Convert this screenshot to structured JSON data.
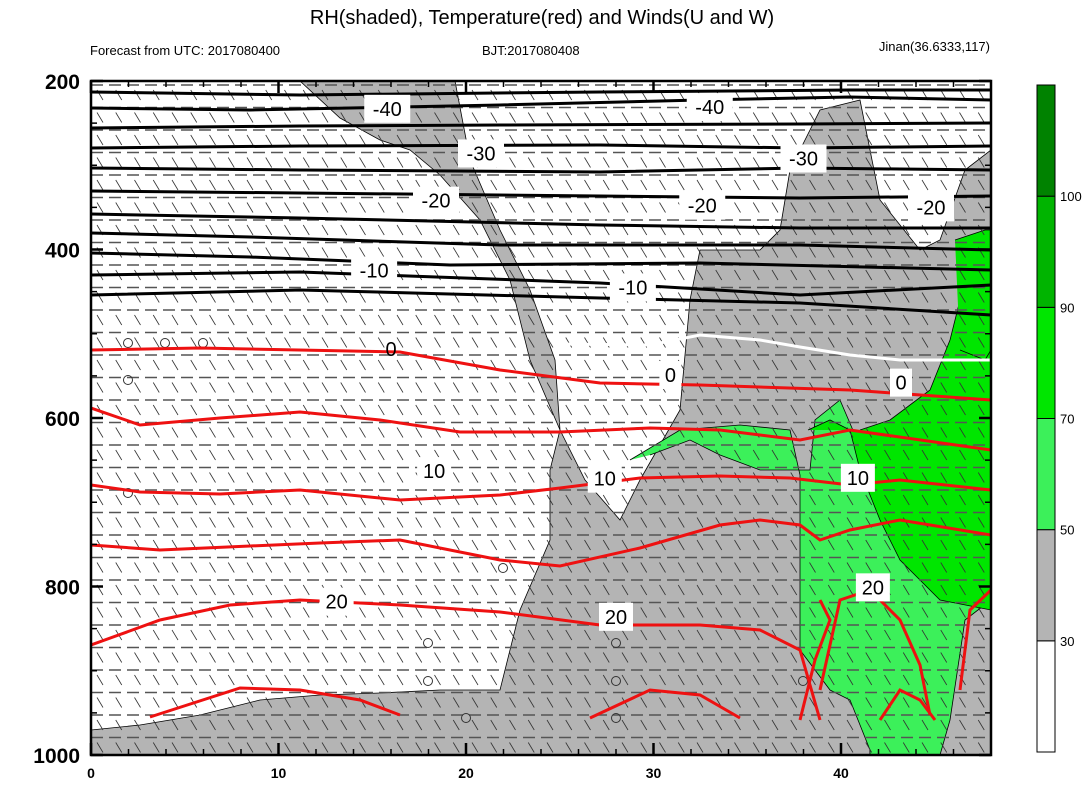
{
  "chart_data": {
    "type": "contour",
    "title": "RH(shaded), Temperature(red) and Winds(U and W)",
    "left_header": "Forecast from UTC: 2017080400",
    "center_header": "BJT:2017080408",
    "right_header": "Jinan(36.6333,117)",
    "xlim": [
      0,
      48
    ],
    "ylim": [
      1000,
      200
    ],
    "x_ticks": [
      "0",
      "10",
      "20",
      "30",
      "40"
    ],
    "x_tick_values": [
      0,
      10,
      20,
      30,
      40
    ],
    "y_ticks": [
      "200",
      "400",
      "600",
      "800",
      "1000"
    ],
    "y_tick_values": [
      200,
      400,
      600,
      800,
      1000
    ],
    "colorbar": {
      "labels": [
        "30",
        "50",
        "70",
        "90",
        "100"
      ],
      "bins": [
        {
          "from": 0,
          "to": 30,
          "color": "#ffffff"
        },
        {
          "from": 30,
          "to": 50,
          "color": "#b4b4b4"
        },
        {
          "from": 50,
          "to": 70,
          "color": "#3cf05a"
        },
        {
          "from": 70,
          "to": 90,
          "color": "#00e600"
        },
        {
          "from": 90,
          "to": 100,
          "color": "#00b400"
        },
        {
          "from": 100,
          "to": 110,
          "color": "#008200"
        }
      ]
    },
    "contour_labels": [
      {
        "text": "-40",
        "x": 15.8,
        "p": 233,
        "color": "black"
      },
      {
        "text": "-40",
        "x": 33.0,
        "p": 231,
        "color": "black"
      },
      {
        "text": "-30",
        "x": 20.8,
        "p": 286,
        "color": "black"
      },
      {
        "text": "-30",
        "x": 38.0,
        "p": 292,
        "color": "black"
      },
      {
        "text": "-20",
        "x": 18.4,
        "p": 342,
        "color": "black"
      },
      {
        "text": "-20",
        "x": 32.6,
        "p": 348,
        "color": "black"
      },
      {
        "text": "-20",
        "x": 44.8,
        "p": 350,
        "color": "black"
      },
      {
        "text": "-10",
        "x": 15.1,
        "p": 425,
        "color": "black"
      },
      {
        "text": "-10",
        "x": 28.9,
        "p": 445,
        "color": "black"
      },
      {
        "text": "0",
        "x": 16.0,
        "p": 518,
        "color": "black"
      },
      {
        "text": "0",
        "x": 30.9,
        "p": 549,
        "color": "white"
      },
      {
        "text": "0",
        "x": 43.2,
        "p": 558,
        "color": "white"
      },
      {
        "text": "10",
        "x": 18.3,
        "p": 663,
        "color": "red"
      },
      {
        "text": "10",
        "x": 27.4,
        "p": 672,
        "color": "red"
      },
      {
        "text": "10",
        "x": 40.9,
        "p": 671,
        "color": "red"
      },
      {
        "text": "20",
        "x": 13.1,
        "p": 818,
        "color": "red"
      },
      {
        "text": "20",
        "x": 28.0,
        "p": 836,
        "color": "red"
      },
      {
        "text": "20",
        "x": 41.7,
        "p": 801,
        "color": "red"
      }
    ]
  }
}
